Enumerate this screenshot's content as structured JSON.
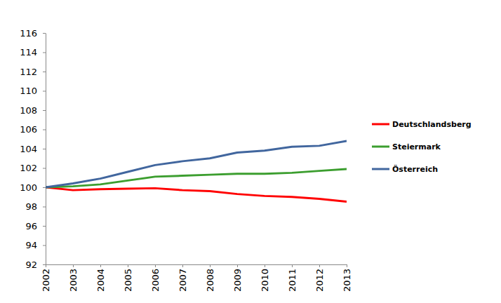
{
  "chart_data": {
    "type": "line",
    "x": [
      2002,
      2003,
      2004,
      2005,
      2006,
      2007,
      2008,
      2009,
      2010,
      2011,
      2012,
      2013
    ],
    "xlim": [
      2002,
      2013
    ],
    "xticks": [
      2002,
      2003,
      2004,
      2005,
      2006,
      2007,
      2008,
      2009,
      2010,
      2011,
      2012,
      2013
    ],
    "ylim": [
      92,
      116
    ],
    "yticks": [
      92,
      94,
      96,
      98,
      100,
      102,
      104,
      106,
      108,
      110,
      112,
      114,
      116
    ],
    "grid": false,
    "legend": "right",
    "series": [
      {
        "name": "Deutschlandsberg",
        "color": "#ff0000",
        "values": [
          100,
          99.7,
          99.8,
          99.85,
          99.9,
          99.7,
          99.6,
          99.3,
          99.1,
          99.0,
          98.8,
          98.5
        ]
      },
      {
        "name": "Steiermark",
        "color": "#3c9e2f",
        "values": [
          100,
          100.1,
          100.3,
          100.7,
          101.1,
          101.2,
          101.3,
          101.4,
          101.4,
          101.5,
          101.7,
          101.9
        ]
      },
      {
        "name": "Österreich",
        "color": "#41669e",
        "values": [
          100,
          100.4,
          100.9,
          101.6,
          102.3,
          102.7,
          103.0,
          103.6,
          103.8,
          104.2,
          104.3,
          104.8
        ]
      }
    ]
  }
}
